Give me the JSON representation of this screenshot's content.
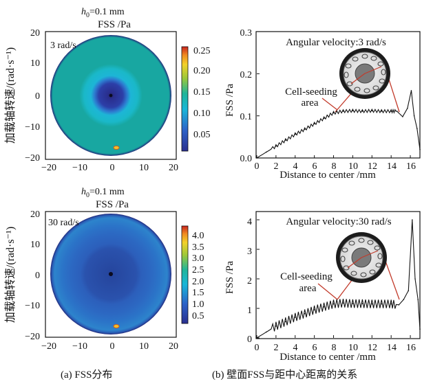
{
  "figure": {
    "caption_a": "(a)  FSS分布",
    "caption_b": "(b)  壁面FSS与距中心距离的关系"
  },
  "chart_data": [
    {
      "type": "heatmap",
      "title_h": "h",
      "title_sub": "0",
      "title_val": "=0.1 mm",
      "title": "FSS /Pa",
      "ylabel": "加载轴转速/(rad·s⁻¹)",
      "annotation": "3 rad/s",
      "x_ticks": [
        "−20",
        "−10",
        "0",
        "10",
        "20"
      ],
      "y_ticks": [
        "20",
        "10",
        "0",
        "−10",
        "−20"
      ],
      "xlim": [
        -20,
        20
      ],
      "ylim": [
        -20,
        20
      ],
      "disk_radius": 19,
      "center_spot_radius": 4,
      "ring_radius": 7,
      "colorbar_ticks": [
        "0.25",
        "0.20",
        "0.15",
        "0.10",
        "0.05"
      ],
      "colorbar_range": [
        0,
        0.27
      ],
      "colors": {
        "background": "#18a7a1",
        "ring": "#1db6d6",
        "center": "#2a2f8f",
        "edge": "#232a7a"
      }
    },
    {
      "type": "line",
      "annotation": "Angular velocity:3 rad/s",
      "inset_label": [
        "Cell-seeding",
        "area"
      ],
      "xlabel": "Distance to center /mm",
      "ylabel": "FSS /Pa",
      "xlim": [
        0,
        17
      ],
      "ylim": [
        0,
        0.3
      ],
      "x_ticks": [
        "0",
        "2",
        "4",
        "6",
        "8",
        "10",
        "12",
        "14",
        "16"
      ],
      "y_ticks": [
        "0.0",
        "0.1",
        "0.2",
        "0.3"
      ],
      "series": [
        {
          "x": [
            0,
            1,
            2,
            3,
            4,
            5,
            6,
            7,
            8,
            9,
            10,
            11,
            12,
            13,
            14,
            14.6,
            15.2,
            15.7,
            16.1,
            16.4,
            16.7,
            17
          ],
          "y": [
            0,
            0.014,
            0.028,
            0.042,
            0.056,
            0.068,
            0.081,
            0.094,
            0.107,
            0.111,
            0.112,
            0.111,
            0.112,
            0.111,
            0.111,
            0.111,
            0.098,
            0.118,
            0.16,
            0.1,
            0.07,
            0.02
          ]
        }
      ]
    },
    {
      "type": "heatmap",
      "title_h": "h",
      "title_sub": "0",
      "title_val": "=0.1 mm",
      "title": "FSS /Pa",
      "ylabel": "加载轴转速/(rad·s⁻¹)",
      "annotation": "30 rad/s",
      "x_ticks": [
        "−20",
        "−10",
        "0",
        "10",
        "20"
      ],
      "y_ticks": [
        "20",
        "10",
        "0",
        "−10",
        "−20"
      ],
      "xlim": [
        -20,
        20
      ],
      "ylim": [
        -20,
        20
      ],
      "disk_radius": 19,
      "center_spot_radius": 8,
      "ring_radius": 12,
      "colorbar_ticks": [
        "4.0",
        "3.5",
        "3.0",
        "2.5",
        "2.0",
        "1.5",
        "1.0",
        "0.5"
      ],
      "colorbar_range": [
        0,
        4.3
      ],
      "colors": {
        "background": "#2b74c8",
        "ring": "#2c5fbb",
        "center": "#26469e",
        "edge": "#232a7a"
      }
    },
    {
      "type": "line",
      "annotation": "Angular velocity:30 rad/s",
      "inset_label": [
        "Cell-seeding",
        "area"
      ],
      "xlabel": "Distance to center /mm",
      "ylabel": "FSS /Pa",
      "xlim": [
        0,
        17
      ],
      "ylim": [
        0,
        4
      ],
      "x_ticks": [
        "0",
        "2",
        "4",
        "6",
        "8",
        "10",
        "12",
        "14",
        "16"
      ],
      "y_ticks": [
        "0",
        "1",
        "2",
        "3",
        "4"
      ],
      "series": [
        {
          "x": [
            0,
            1,
            2,
            3,
            4,
            5,
            6,
            7,
            8,
            9,
            10,
            11,
            12,
            13,
            14,
            14.8,
            15.3,
            15.8,
            16.2,
            16.5,
            16.8,
            17
          ],
          "y": [
            0,
            0.2,
            0.4,
            0.55,
            0.7,
            0.82,
            0.95,
            1.05,
            1.15,
            1.18,
            1.16,
            1.16,
            1.15,
            1.15,
            1.15,
            1.12,
            1.3,
            1.6,
            4.0,
            2.0,
            1.3,
            0.3
          ]
        }
      ]
    }
  ]
}
